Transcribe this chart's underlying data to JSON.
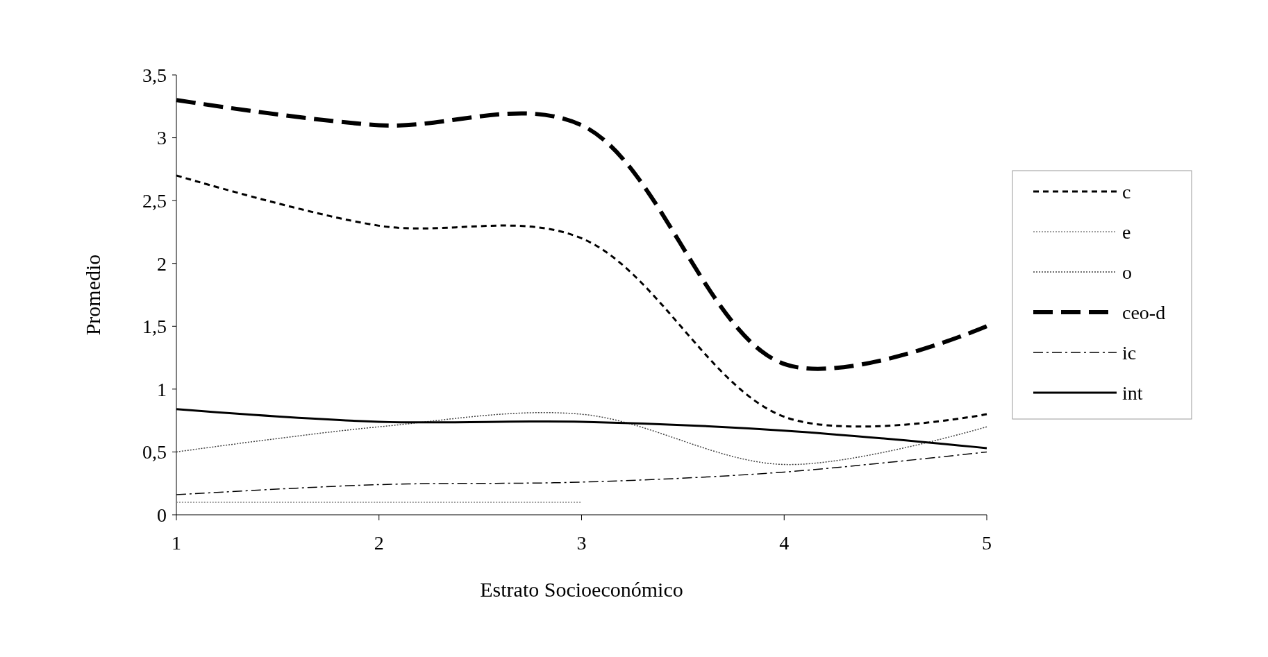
{
  "chart_data": {
    "type": "line",
    "xlabel": "Estrato Socioeconómico",
    "ylabel": "Promedio",
    "x": [
      1,
      2,
      3,
      4,
      5
    ],
    "xlim": [
      1,
      5
    ],
    "xticks": [
      1,
      2,
      3,
      4,
      5
    ],
    "ylim": [
      0,
      3.5
    ],
    "yticks": [
      0,
      {
        "value": 0.5,
        "label": "0,5"
      },
      1,
      {
        "value": 1.5,
        "label": "1,5"
      },
      2,
      {
        "value": 2.5,
        "label": "2,5"
      },
      3,
      {
        "value": 3.5,
        "label": "3,5"
      }
    ],
    "grid": false,
    "legend": "right",
    "marker": "none",
    "series": [
      {
        "name": "c",
        "color": "#000000",
        "line_style": "dashed",
        "values": [
          2.7,
          2.3,
          2.2,
          0.78,
          0.8
        ]
      },
      {
        "name": "e",
        "color": "#808080",
        "line_style": "dotted",
        "values": [
          0.1,
          0.1,
          0.1,
          null,
          null
        ]
      },
      {
        "name": "o",
        "color": "#404040",
        "line_style": "dotted",
        "values": [
          0.5,
          0.7,
          0.8,
          0.4,
          0.7
        ]
      },
      {
        "name": "ceo-d",
        "color": "#000000",
        "line_style": "dashed",
        "values": [
          3.3,
          3.1,
          3.1,
          1.2,
          1.5
        ]
      },
      {
        "name": "ic",
        "color": "#000000",
        "line_style": "dashed",
        "values": [
          0.16,
          0.24,
          0.26,
          0.34,
          0.5
        ]
      },
      {
        "name": "int",
        "color": "#000000",
        "line_style": "solid",
        "values": [
          0.84,
          0.74,
          0.74,
          0.67,
          0.53
        ]
      }
    ]
  }
}
